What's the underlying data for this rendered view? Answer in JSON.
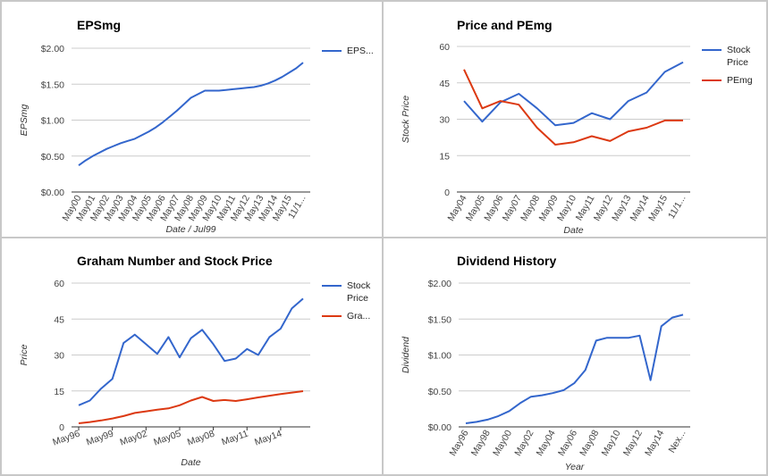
{
  "colors": {
    "blue": "#3366cc",
    "red": "#dc3912",
    "grid": "#cccccc",
    "axis": "#333333"
  },
  "chart_data": [
    {
      "id": "eps",
      "type": "line",
      "title": "EPSmg",
      "xlabel": "Date / Jul99",
      "ylabel": "EPSmg",
      "ylim": [
        0,
        2
      ],
      "yticks": [
        0,
        0.5,
        1,
        1.5,
        2
      ],
      "ytick_labels": [
        "$0.00",
        "$0.50",
        "$1.00",
        "$1.50",
        "$2.00"
      ],
      "categories": [
        "May00",
        "",
        "May01",
        "",
        "May02",
        "",
        "May03",
        "",
        "May04",
        "",
        "May05",
        "",
        "May06",
        "",
        "May07",
        "",
        "May08",
        "",
        "May09",
        "",
        "May10",
        "",
        "May11",
        "",
        "May12",
        "",
        "May13",
        "",
        "May14",
        "",
        "May15",
        "",
        "11/1..."
      ],
      "series": [
        {
          "name": "EPS...",
          "color": "#3366cc",
          "values": [
            0.37,
            0.44,
            0.5,
            0.55,
            0.6,
            0.64,
            0.68,
            0.71,
            0.74,
            0.79,
            0.84,
            0.9,
            0.97,
            1.05,
            1.13,
            1.22,
            1.31,
            1.36,
            1.41,
            1.41,
            1.41,
            1.42,
            1.43,
            1.44,
            1.45,
            1.46,
            1.48,
            1.51,
            1.55,
            1.6,
            1.66,
            1.72,
            1.8
          ]
        }
      ],
      "legend": "right"
    },
    {
      "id": "pe",
      "type": "line",
      "title": "Price and PEmg",
      "xlabel": "Date",
      "ylabel": "Stock Price",
      "ylim": [
        0,
        60
      ],
      "yticks": [
        0,
        15,
        30,
        45,
        60
      ],
      "ytick_labels": [
        "0",
        "15",
        "30",
        "45",
        "60"
      ],
      "categories": [
        "May04",
        "May05",
        "May06",
        "May07",
        "May08",
        "May09",
        "May10",
        "May11",
        "May12",
        "May13",
        "May14",
        "May15",
        "11/1..."
      ],
      "series": [
        {
          "name": "Stock Price",
          "color": "#3366cc",
          "values": [
            37.5,
            29.0,
            37.0,
            40.5,
            34.5,
            27.5,
            28.5,
            32.5,
            30.0,
            37.5,
            41.0,
            49.5,
            53.5
          ]
        },
        {
          "name": "PEmg",
          "color": "#dc3912",
          "values": [
            50.5,
            34.5,
            37.5,
            36.0,
            26.5,
            19.5,
            20.5,
            23.0,
            21.0,
            25.0,
            26.5,
            29.5,
            29.5
          ]
        }
      ],
      "legend": "right"
    },
    {
      "id": "graham",
      "type": "line",
      "title": "Graham Number and Stock Price",
      "xlabel": "Date",
      "ylabel": "Price",
      "ylim": [
        0,
        60
      ],
      "yticks": [
        0,
        15,
        30,
        45,
        60
      ],
      "ytick_labels": [
        "0",
        "15",
        "30",
        "45",
        "60"
      ],
      "categories": [
        "May96",
        "",
        "",
        "May99",
        "",
        "",
        "May02",
        "",
        "",
        "May05",
        "",
        "",
        "May08",
        "",
        "",
        "May11",
        "",
        "",
        "May14",
        "",
        ""
      ],
      "series": [
        {
          "name": "Stock Price",
          "color": "#3366cc",
          "values": [
            9.0,
            11.0,
            16.0,
            20.0,
            35.0,
            38.5,
            34.5,
            30.5,
            37.5,
            29.0,
            37.0,
            40.5,
            34.5,
            27.5,
            28.5,
            32.5,
            30.0,
            37.5,
            41.0,
            49.5,
            53.5
          ]
        },
        {
          "name": "Gra...",
          "color": "#dc3912",
          "values": [
            1.5,
            2.0,
            2.7,
            3.5,
            4.5,
            5.8,
            6.5,
            7.2,
            7.7,
            9.0,
            11.0,
            12.5,
            10.8,
            11.2,
            10.8,
            11.5,
            12.3,
            13.0,
            13.7,
            14.3,
            14.9
          ]
        }
      ],
      "legend": "right"
    },
    {
      "id": "div",
      "type": "line",
      "title": "Dividend History",
      "xlabel": "Year",
      "ylabel": "Dividend",
      "ylim": [
        0,
        2
      ],
      "yticks": [
        0,
        0.5,
        1,
        1.5,
        2
      ],
      "ytick_labels": [
        "$0.00",
        "$0.50",
        "$1.00",
        "$1.50",
        "$2.00"
      ],
      "categories": [
        "May96",
        "",
        "May98",
        "",
        "May00",
        "",
        "May02",
        "",
        "May04",
        "",
        "May06",
        "",
        "May08",
        "",
        "May10",
        "",
        "May12",
        "",
        "May14",
        "",
        "Nex..."
      ],
      "series": [
        {
          "name": "",
          "color": "#3366cc",
          "values": [
            0.05,
            0.07,
            0.1,
            0.15,
            0.22,
            0.33,
            0.42,
            0.44,
            0.47,
            0.51,
            0.61,
            0.79,
            1.2,
            1.24,
            1.24,
            1.24,
            1.27,
            0.65,
            1.4,
            1.52,
            1.56
          ]
        }
      ],
      "legend": "none"
    }
  ]
}
